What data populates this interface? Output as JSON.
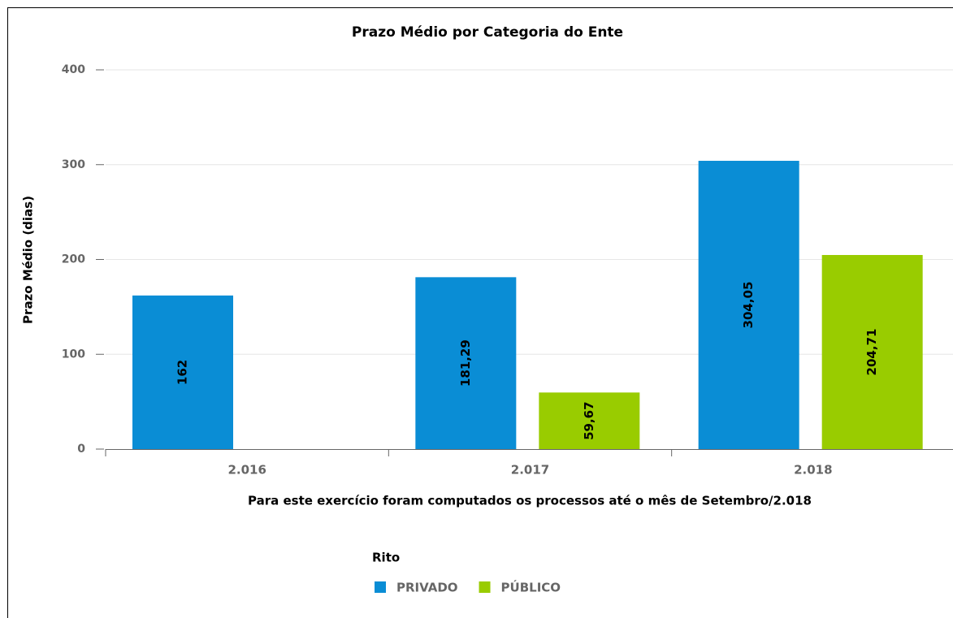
{
  "chart_data": {
    "type": "bar",
    "title": "Prazo Médio por Categoria do Ente",
    "y_label": "Prazo Médio (dias)",
    "annotation": "Para este exercício foram computados os processos até o mês de Setembro/2.018",
    "legend_title": "Rito",
    "categories": [
      "2.016",
      "2.017",
      "2.018"
    ],
    "series": [
      {
        "name": "PRIVADO",
        "color": "#0a8dd5",
        "values": [
          162,
          181.29,
          304.05
        ],
        "value_labels": [
          "162",
          "181,29",
          "304,05"
        ]
      },
      {
        "name": "PÚBLICO",
        "color": "#99cc00",
        "values": [
          null,
          59.67,
          204.71
        ],
        "value_labels": [
          null,
          "59,67",
          "204,71"
        ]
      }
    ],
    "ylim": [
      0,
      400
    ],
    "yticks": [
      0,
      100,
      200,
      300,
      400
    ],
    "grid": true,
    "legend": "bottom"
  }
}
